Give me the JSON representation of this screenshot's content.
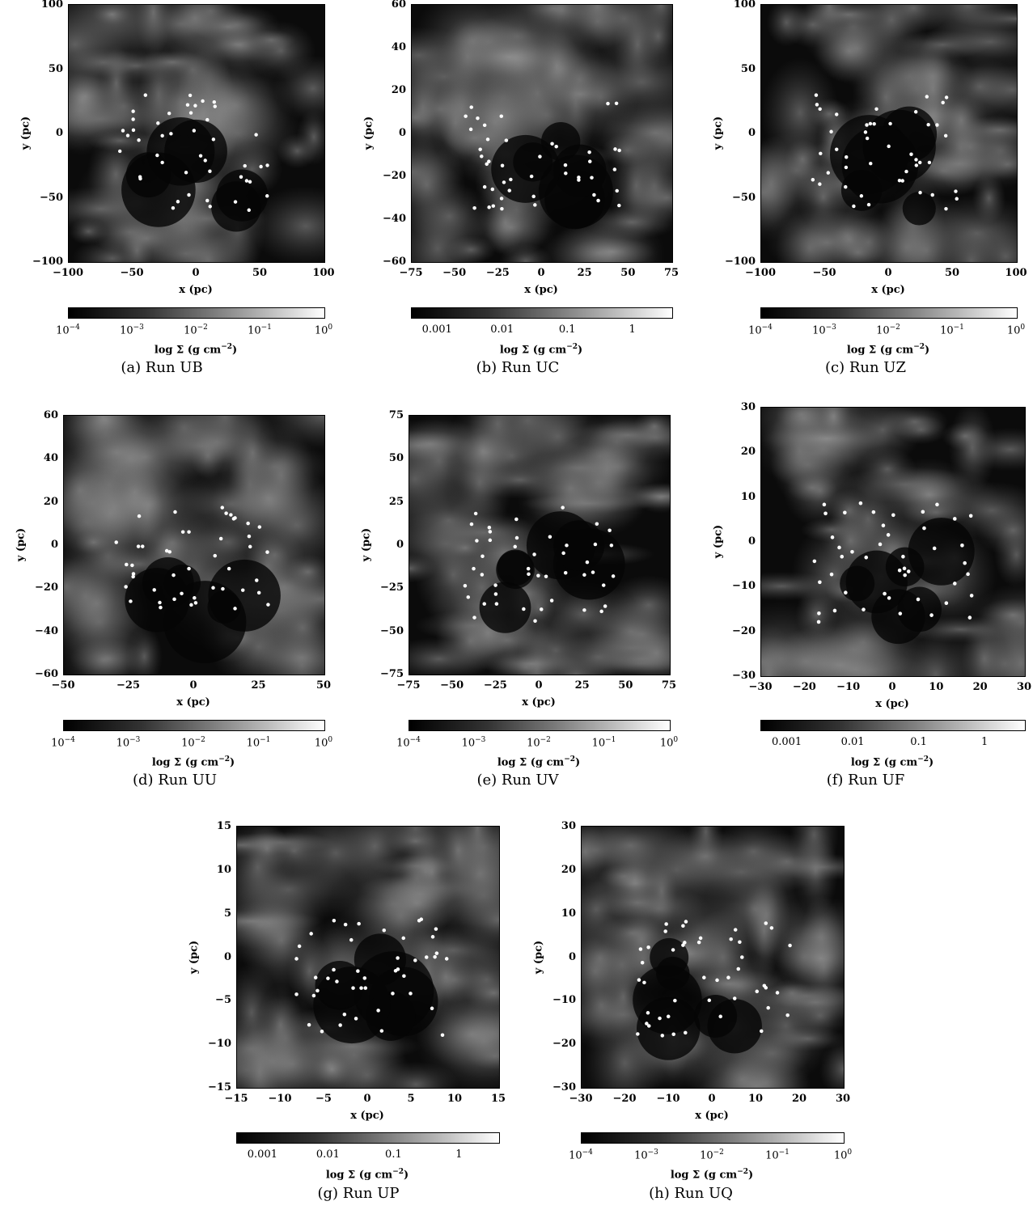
{
  "panels": [
    {
      "id": "a",
      "caption": "(a) Run UB",
      "xlabel": "x (pc)",
      "ylabel": "y (pc)",
      "xticks": [
        "−100",
        "−50",
        "0",
        "50",
        "100"
      ],
      "yticks": [
        "100",
        "50",
        "0",
        "−50",
        "−100"
      ],
      "cbar_ticks": [
        "10−4",
        "10−3",
        "10−2",
        "10−1",
        "100"
      ],
      "cbar_label": "log Σ (g cm−2)"
    },
    {
      "id": "b",
      "caption": "(b) Run UC",
      "xlabel": "x (pc)",
      "ylabel": "y (pc)",
      "xticks": [
        "−75",
        "−50",
        "−25",
        "0",
        "25",
        "50",
        "75"
      ],
      "yticks": [
        "60",
        "40",
        "20",
        "0",
        "−20",
        "−40",
        "−60"
      ],
      "cbar_ticks": [
        "0.001",
        "0.01",
        "0.1",
        "1"
      ],
      "cbar_label": "log Σ (g cm−2)"
    },
    {
      "id": "c",
      "caption": "(c) Run UZ",
      "xlabel": "x (pc)",
      "ylabel": "y (pc)",
      "xticks": [
        "−100",
        "−50",
        "0",
        "50",
        "100"
      ],
      "yticks": [
        "100",
        "50",
        "0",
        "−50",
        "−100"
      ],
      "cbar_ticks": [
        "10−4",
        "10−3",
        "10−2",
        "10−1",
        "100"
      ],
      "cbar_label": "log Σ (g cm−2)"
    },
    {
      "id": "d",
      "caption": "(d) Run UU",
      "xlabel": "x (pc)",
      "ylabel": "y (pc)",
      "xticks": [
        "−50",
        "−25",
        "0",
        "25",
        "50"
      ],
      "yticks": [
        "60",
        "40",
        "20",
        "0",
        "−20",
        "−40",
        "−60"
      ],
      "cbar_ticks": [
        "10−4",
        "10−3",
        "10−2",
        "10−1",
        "100"
      ],
      "cbar_label": "log Σ (g cm−2)"
    },
    {
      "id": "e",
      "caption": "(e) Run UV",
      "xlabel": "x (pc)",
      "ylabel": "y (pc)",
      "xticks": [
        "−75",
        "−50",
        "−25",
        "0",
        "25",
        "50",
        "75"
      ],
      "yticks": [
        "75",
        "50",
        "25",
        "0",
        "−25",
        "−50",
        "−75"
      ],
      "cbar_ticks": [
        "10−4",
        "10−3",
        "10−2",
        "10−1",
        "100"
      ],
      "cbar_label": "log Σ (g cm−2)"
    },
    {
      "id": "f",
      "caption": "(f) Run UF",
      "xlabel": "x (pc)",
      "ylabel": "y (pc)",
      "xticks": [
        "−30",
        "−20",
        "−10",
        "0",
        "10",
        "20",
        "30"
      ],
      "yticks": [
        "30",
        "20",
        "10",
        "0",
        "−10",
        "−20",
        "−30"
      ],
      "cbar_ticks": [
        "0.001",
        "0.01",
        "0.1",
        "1"
      ],
      "cbar_label": "log Σ (g cm−2)"
    },
    {
      "id": "g",
      "caption": "(g) Run UP",
      "xlabel": "x (pc)",
      "ylabel": "y (pc)",
      "xticks": [
        "−15",
        "−10",
        "−5",
        "0",
        "5",
        "10",
        "15"
      ],
      "yticks": [
        "15",
        "10",
        "5",
        "0",
        "−5",
        "−10",
        "−15"
      ],
      "cbar_ticks": [
        "0.001",
        "0.01",
        "0.1",
        "1"
      ],
      "cbar_label": "log Σ (g cm−2)"
    },
    {
      "id": "h",
      "caption": "(h) Run UQ",
      "xlabel": "x (pc)",
      "ylabel": "y (pc)",
      "xticks": [
        "−30",
        "−20",
        "−10",
        "0",
        "10",
        "20",
        "30"
      ],
      "yticks": [
        "30",
        "20",
        "10",
        "0",
        "−10",
        "−20",
        "−30"
      ],
      "cbar_ticks": [
        "10−4",
        "10−3",
        "10−2",
        "10−1",
        "100"
      ],
      "cbar_label": "log Σ (g cm−2)"
    }
  ]
}
